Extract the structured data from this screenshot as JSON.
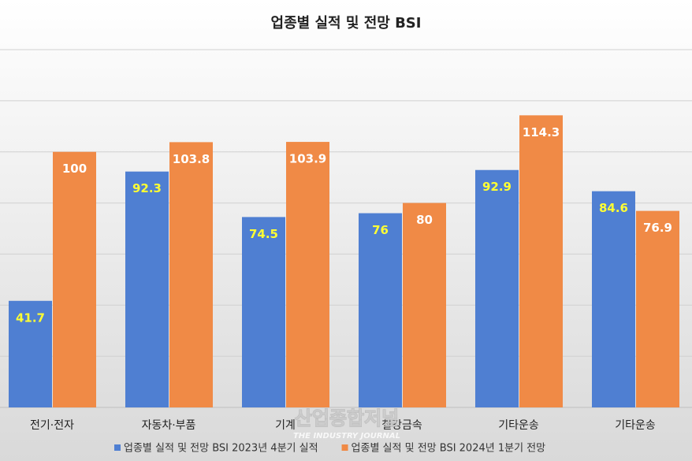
{
  "chart_data": {
    "type": "bar",
    "title": "업종별 실적 및 전망 BSI",
    "categories": [
      "전기·전자",
      "자동차·부품",
      "기계",
      "철강금속",
      "기타운송",
      "기타운송"
    ],
    "series": [
      {
        "name": "업종별 실적 및 전망 BSI 2023년 4분기 실적",
        "color": "#4f7fd2",
        "label_color": "#ffff33",
        "values": [
          41.7,
          92.3,
          74.5,
          76,
          92.9,
          84.6
        ]
      },
      {
        "name": "업종별 실적 및 전망 BSI 2024년 1분기 전망",
        "color": "#f08a46",
        "label_color": "#ffffff",
        "values": [
          100,
          103.8,
          103.9,
          80,
          114.3,
          76.9
        ]
      }
    ],
    "ylim": [
      0,
      140
    ],
    "yticks": [
      0,
      20,
      40,
      60,
      80,
      100,
      120,
      140
    ],
    "grid": true,
    "watermark": {
      "title": "산업종합저널",
      "subtitle": "THE INDUSTRY JOURNAL"
    }
  }
}
